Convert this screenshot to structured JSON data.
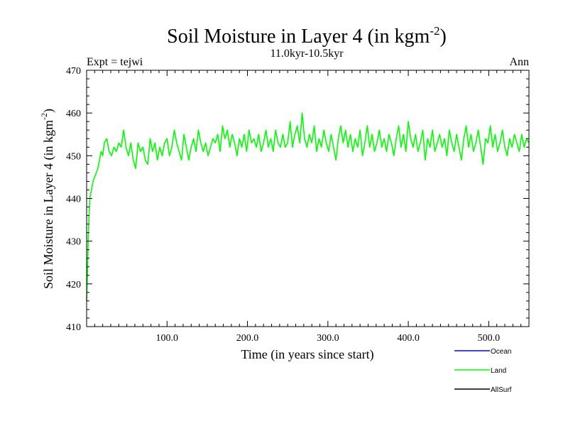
{
  "chart_data": {
    "type": "line",
    "title": "Soil Moisture in Layer 4 (in kgm",
    "title_sup": "-2",
    "title_close": ")",
    "subtitle": "11.0kyr-10.5kyr",
    "left_label": "Expt = tejwi",
    "right_label": "Ann",
    "xlabel": "Time (in years since start)",
    "ylabel": "Soil Moisture in Layer 4 (in kgm",
    "ylabel_sup": "-2",
    "ylabel_close": ")",
    "xlim": [
      0,
      550
    ],
    "ylim": [
      410,
      470
    ],
    "x_ticks": [
      100,
      200,
      300,
      400,
      500
    ],
    "x_tick_labels": [
      "100.0",
      "200.0",
      "300.0",
      "400.0",
      "500.0"
    ],
    "y_ticks": [
      410,
      420,
      430,
      440,
      450,
      460,
      470
    ],
    "y_tick_labels": [
      "410",
      "420",
      "430",
      "440",
      "450",
      "460",
      "470"
    ],
    "legend": [
      {
        "name": "Ocean",
        "color": "#0000ff"
      },
      {
        "name": "Land",
        "color": "#00ff00"
      },
      {
        "name": "AllSurf",
        "color": "#000000"
      }
    ],
    "series": [
      {
        "name": "Land",
        "color": "#00ff00",
        "x": [
          0,
          1,
          2,
          3,
          4,
          5,
          6,
          8,
          10,
          12,
          14,
          16,
          18,
          20,
          22,
          25,
          28,
          31,
          34,
          37,
          40,
          43,
          46,
          49,
          52,
          55,
          58,
          61,
          64,
          67,
          70,
          73,
          76,
          79,
          82,
          85,
          88,
          91,
          94,
          97,
          100,
          103,
          106,
          109,
          112,
          115,
          118,
          121,
          124,
          127,
          130,
          133,
          136,
          139,
          142,
          145,
          148,
          151,
          154,
          157,
          160,
          163,
          166,
          169,
          172,
          175,
          178,
          181,
          184,
          187,
          190,
          193,
          196,
          199,
          202,
          205,
          208,
          211,
          214,
          217,
          220,
          223,
          226,
          229,
          232,
          235,
          238,
          241,
          244,
          247,
          250,
          253,
          256,
          259,
          262,
          265,
          268,
          271,
          274,
          277,
          280,
          283,
          286,
          289,
          292,
          295,
          298,
          301,
          304,
          307,
          310,
          313,
          316,
          319,
          322,
          325,
          328,
          331,
          334,
          337,
          340,
          343,
          346,
          349,
          352,
          355,
          358,
          361,
          364,
          367,
          370,
          373,
          376,
          379,
          382,
          385,
          388,
          391,
          394,
          397,
          400,
          403,
          406,
          409,
          412,
          415,
          418,
          421,
          424,
          427,
          430,
          433,
          436,
          439,
          442,
          445,
          448,
          451,
          454,
          457,
          460,
          463,
          466,
          469,
          472,
          475,
          478,
          481,
          484,
          487,
          490,
          493,
          496,
          499,
          502,
          505,
          508,
          511,
          514,
          517,
          520,
          523,
          526,
          529,
          532,
          535,
          538,
          541,
          544,
          547,
          550
        ],
        "values": [
          416,
          422,
          431,
          436,
          440,
          441,
          442,
          444,
          445,
          446,
          447,
          449,
          451,
          450,
          453,
          454,
          451,
          450,
          452,
          451,
          453,
          452,
          456,
          452,
          450,
          453,
          449,
          447,
          453,
          451,
          452,
          449,
          448,
          454,
          451,
          453,
          449,
          452,
          450,
          453,
          454,
          450,
          452,
          456,
          453,
          451,
          449,
          455,
          452,
          449,
          452,
          454,
          451,
          456,
          453,
          451,
          453,
          450,
          452,
          454,
          453,
          455,
          451,
          457,
          454,
          456,
          452,
          455,
          453,
          450,
          454,
          452,
          455,
          451,
          456,
          453,
          454,
          452,
          455,
          451,
          453,
          456,
          452,
          454,
          451,
          456,
          453,
          452,
          455,
          452,
          453,
          458,
          452,
          455,
          457,
          453,
          460,
          454,
          452,
          455,
          453,
          457,
          451,
          454,
          452,
          456,
          453,
          451,
          455,
          452,
          449,
          454,
          457,
          453,
          456,
          452,
          455,
          451,
          454,
          452,
          456,
          450,
          453,
          457,
          452,
          455,
          451,
          453,
          456,
          452,
          454,
          451,
          455,
          453,
          450,
          454,
          457,
          452,
          455,
          451,
          458,
          454,
          452,
          455,
          451,
          453,
          456,
          449,
          454,
          452,
          456,
          451,
          453,
          455,
          452,
          454,
          450,
          456,
          453,
          451,
          455,
          452,
          449,
          454,
          457,
          452,
          455,
          451,
          453,
          456,
          452,
          448,
          454,
          453,
          457,
          452,
          455,
          451,
          453,
          456,
          452,
          450,
          454,
          452,
          455,
          453,
          451,
          455,
          452,
          454,
          453
        ]
      },
      {
        "name": "Ocean",
        "color": "#0000ff",
        "values": []
      },
      {
        "name": "AllSurf",
        "color": "#000000",
        "values": []
      }
    ]
  }
}
